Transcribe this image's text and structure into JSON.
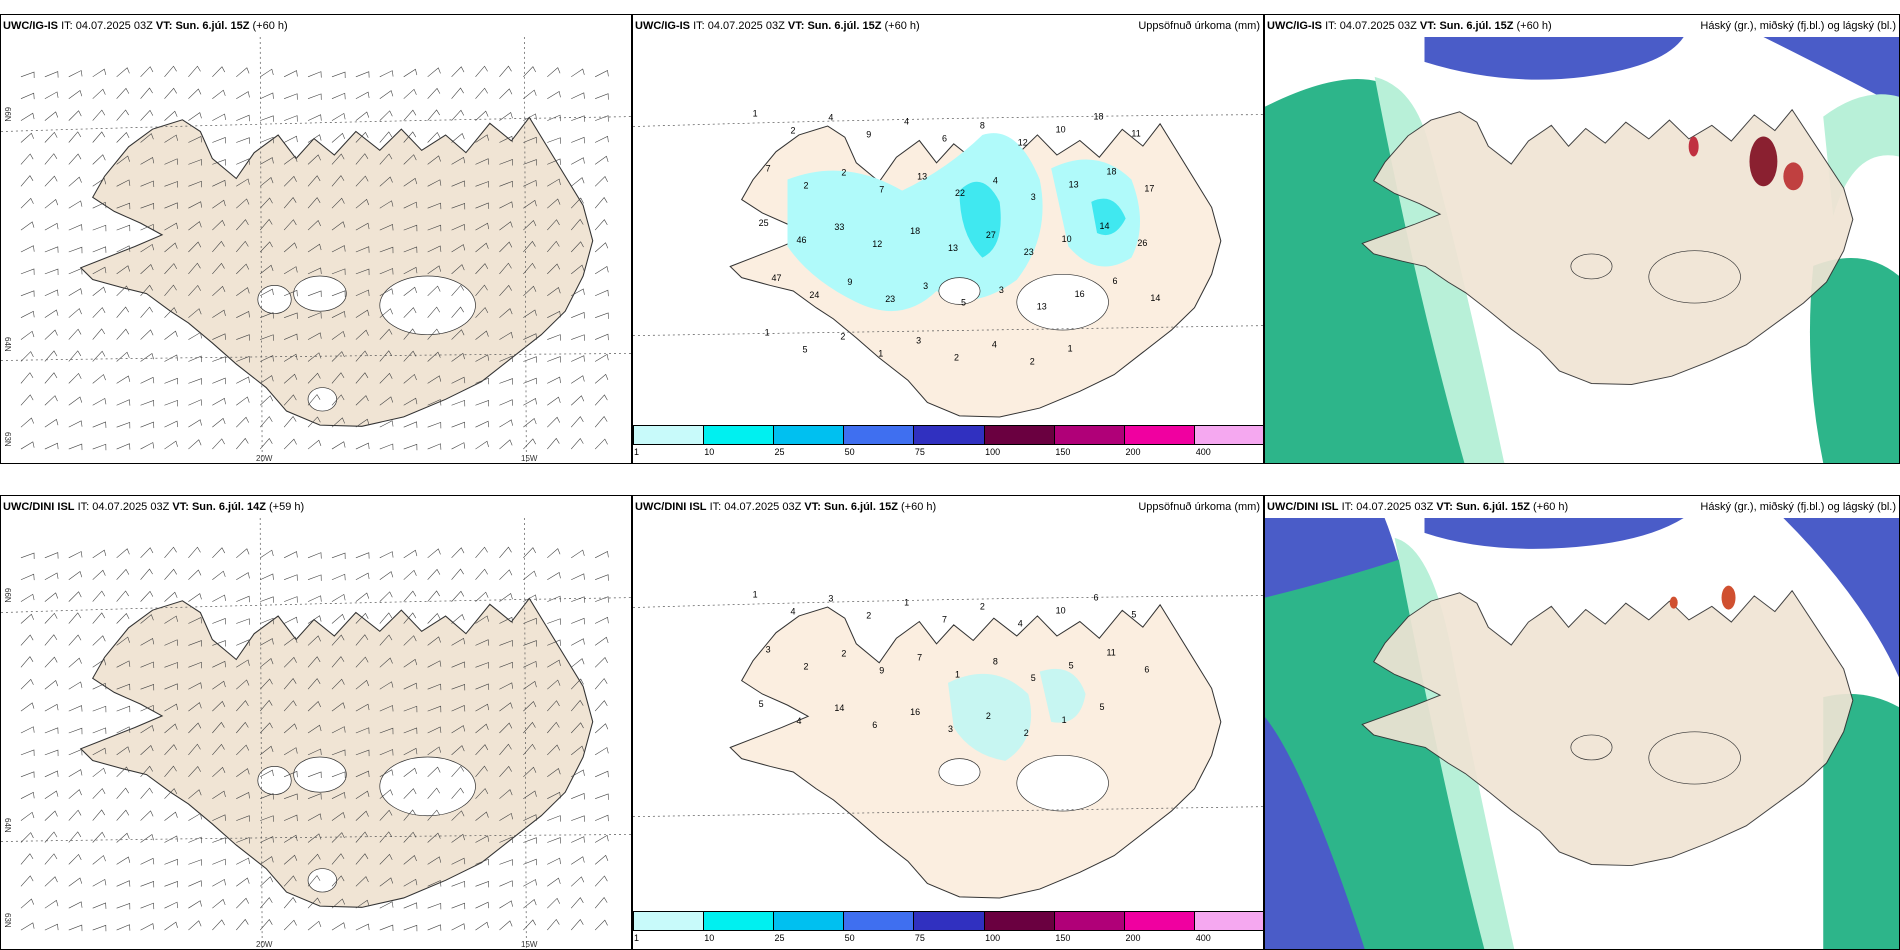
{
  "panels": [
    {
      "model": "UWC/IG-IS",
      "it_label": "IT:",
      "it": "04.07.2025 03Z",
      "vt_label": "VT:",
      "vt": "Sun. 6.júl. 15Z",
      "lead": "(+60 h)",
      "unit": ""
    },
    {
      "model": "UWC/IG-IS",
      "it_label": "IT:",
      "it": "04.07.2025 03Z",
      "vt_label": "VT:",
      "vt": "Sun. 6.júl. 15Z",
      "lead": "(+60 h)",
      "unit": "Uppsöfnuð úrkoma (mm)"
    },
    {
      "model": "UWC/IG-IS",
      "it_label": "IT:",
      "it": "04.07.2025 03Z",
      "vt_label": "VT:",
      "vt": "Sun. 6.júl. 15Z",
      "lead": "(+60 h)",
      "unit": "Háský (gr.), miðský (fj.bl.) og lágský (bl.)"
    },
    {
      "model": "UWC/DINI ISL",
      "it_label": "IT:",
      "it": "04.07.2025 03Z",
      "vt_label": "VT:",
      "vt": "Sun. 6.júl. 14Z",
      "lead": "(+59 h)",
      "unit": ""
    },
    {
      "model": "UWC/DINI ISL",
      "it_label": "IT:",
      "it": "04.07.2025 03Z",
      "vt_label": "VT:",
      "vt": "Sun. 6.júl. 15Z",
      "lead": "(+60 h)",
      "unit": "Uppsöfnuð úrkoma (mm)"
    },
    {
      "model": "UWC/DINI ISL",
      "it_label": "IT:",
      "it": "04.07.2025 03Z",
      "vt_label": "VT:",
      "vt": "Sun. 6.júl. 15Z",
      "lead": "(+60 h)",
      "unit": "Háský (gr.), miðský (fj.bl.) og lágský (bl.)"
    }
  ],
  "axes": {
    "lon_20": "20W",
    "lon_15": "15W",
    "lat_66": "66N",
    "lat_64": "64N",
    "lat_63": "63N"
  },
  "colorbar": {
    "colors": [
      "#c8fafa",
      "#00f0f0",
      "#00c0f0",
      "#3f6ff0",
      "#3030c0",
      "#6a0040",
      "#b00078",
      "#f000a0",
      "#f5a8f0"
    ],
    "ticks": [
      "1",
      "10",
      "25",
      "50",
      "75",
      "100",
      "150",
      "200",
      "400"
    ]
  },
  "colors": {
    "land": "#f0e4d4",
    "land_precip": "#fbeee0",
    "precip_light": "#b0fafa",
    "precip_mid": "#40e8f0",
    "precip_heavy": "#00b8d0",
    "cloud_high": "#2db58a",
    "cloud_mid": "#4a5cc8",
    "cloud_low": "#b8f0d8"
  },
  "precip_top": [
    "1",
    "2",
    "4",
    "9",
    "4",
    "6",
    "8",
    "12",
    "10",
    "18",
    "11",
    "7",
    "2",
    "2",
    "7",
    "13",
    "22",
    "4",
    "3",
    "13",
    "18",
    "17",
    "25",
    "46",
    "33",
    "12",
    "18",
    "13",
    "27",
    "23",
    "10",
    "14",
    "26",
    "47",
    "24",
    "9",
    "23",
    "3",
    "5",
    "3",
    "13",
    "16",
    "6",
    "14",
    "1",
    "5",
    "2",
    "1",
    "3",
    "2",
    "4",
    "2",
    "1"
  ],
  "precip_bottom": [
    "1",
    "4",
    "3",
    "2",
    "1",
    "7",
    "2",
    "4",
    "10",
    "6",
    "5",
    "3",
    "2",
    "2",
    "9",
    "7",
    "1",
    "8",
    "5",
    "5",
    "11",
    "6",
    "5",
    "4",
    "14",
    "6",
    "16",
    "3",
    "2",
    "2",
    "1",
    "5"
  ]
}
